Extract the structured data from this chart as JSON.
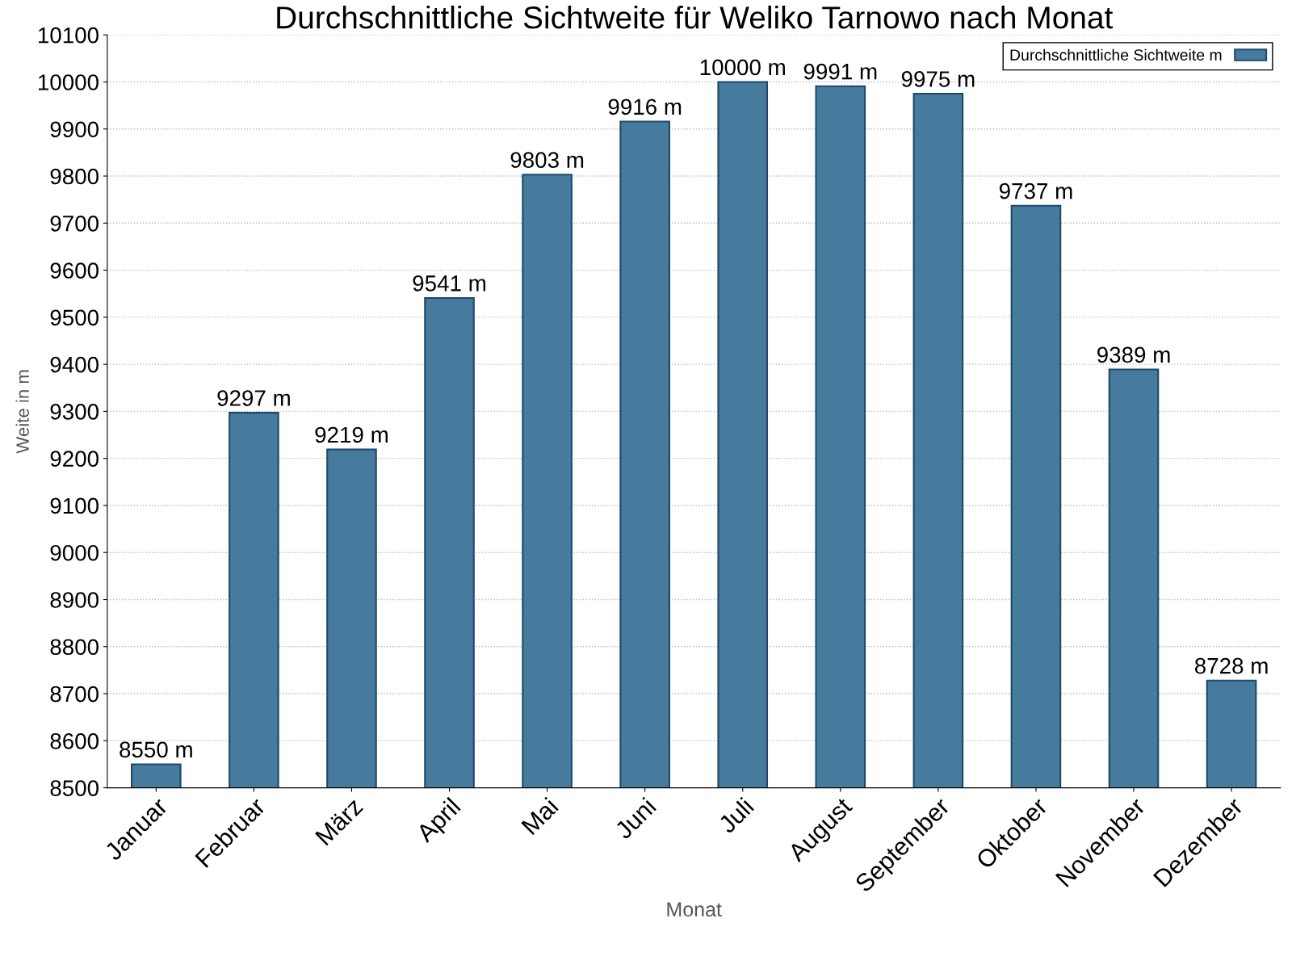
{
  "chart_data": {
    "type": "bar",
    "title": "Durchschnittliche Sichtweite für Weliko Tarnowo nach Monat",
    "xlabel": "Monat",
    "ylabel": "Weite in m",
    "categories": [
      "Januar",
      "Februar",
      "März",
      "April",
      "Mai",
      "Juni",
      "Juli",
      "August",
      "September",
      "Oktober",
      "November",
      "Dezember"
    ],
    "series": [
      {
        "name": "Durchschnittliche Sichtweite m",
        "color": "#467b9d",
        "values": [
          8550,
          9297,
          9219,
          9541,
          9803,
          9916,
          10000,
          9991,
          9975,
          9737,
          9389,
          8728
        ],
        "value_labels": [
          "8550 m",
          "9297 m",
          "9219 m",
          "9541 m",
          "9803 m",
          "9916 m",
          "10000 m",
          "9991 m",
          "9975 m",
          "9737 m",
          "9389 m",
          "8728 m"
        ]
      }
    ],
    "ylim": [
      8500,
      10100
    ],
    "yticks": [
      8500,
      8600,
      8700,
      8800,
      8900,
      9000,
      9100,
      9200,
      9300,
      9400,
      9500,
      9600,
      9700,
      9800,
      9900,
      10000,
      10100
    ],
    "grid": "y",
    "legend": "top right"
  }
}
